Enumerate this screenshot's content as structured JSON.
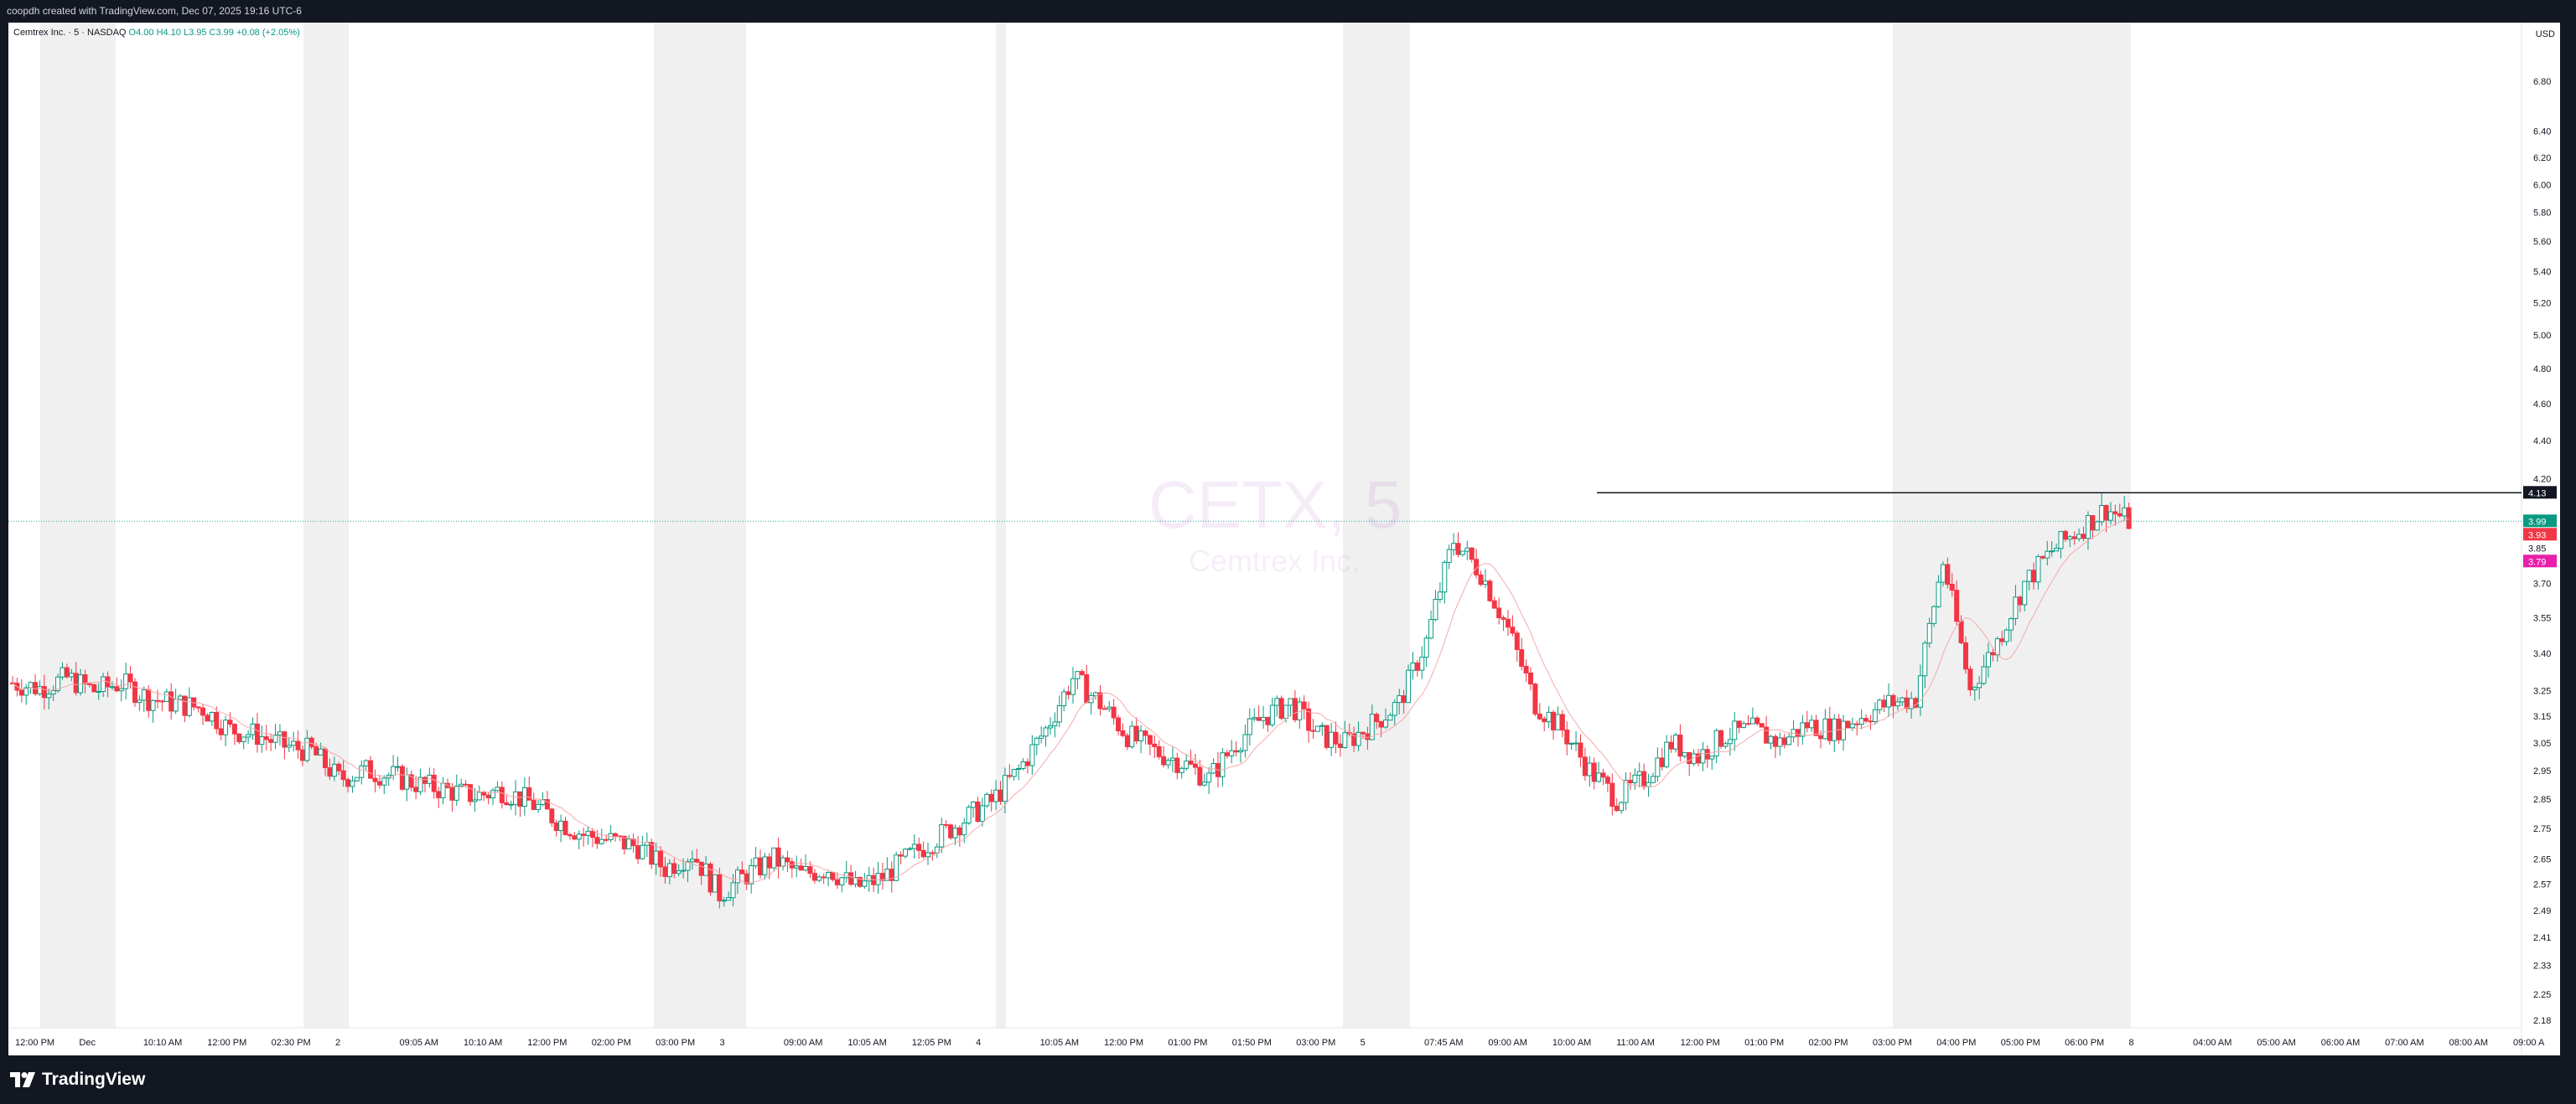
{
  "header": {
    "attribution": "coopdh created with TradingView.com, Dec 07, 2025 19:16 UTC-6"
  },
  "legend": {
    "symbol_line": "Cemtrex Inc. · 5 · NASDAQ",
    "ohlc": "O4.00  H4.10  L3.95  C3.99  +0.08 (+2.05%)"
  },
  "watermark": {
    "ticker": "CETX, 5",
    "name": "Cemtrex Inc."
  },
  "footer": {
    "brand": "TradingView"
  },
  "colors": {
    "up": "#089981",
    "down": "#f23645",
    "session_shade": "#f0f0f0",
    "ma": "#f7a9a9",
    "current_line": "#26a69a",
    "resistance": "#131722",
    "label_magenta": "#e91eaa"
  },
  "chart_data": {
    "type": "candlestick",
    "timeframe": "5",
    "currency": "USD",
    "y_scale": "log",
    "ylim": [
      2.16,
      7.3
    ],
    "y_ticks": [
      6.8,
      6.4,
      6.2,
      6.0,
      5.8,
      5.6,
      5.4,
      5.2,
      5.0,
      4.8,
      4.6,
      4.4,
      4.2,
      3.85,
      3.7,
      3.55,
      3.4,
      3.25,
      3.15,
      3.05,
      2.95,
      2.85,
      2.75,
      2.65,
      2.57,
      2.49,
      2.41,
      2.33,
      2.25,
      2.18
    ],
    "x_ticks": [
      "12:00 PM",
      "Dec",
      "10:10 AM",
      "12:00 PM",
      "02:30 PM",
      "2",
      "09:05 AM",
      "10:10 AM",
      "12:00 PM",
      "02:00 PM",
      "03:00 PM",
      "3",
      "09:00 AM",
      "10:05 AM",
      "12:05 PM",
      "4",
      "10:05 AM",
      "12:00 PM",
      "01:00 PM",
      "01:50 PM",
      "03:00 PM",
      "5",
      "07:45 AM",
      "09:00 AM",
      "10:00 AM",
      "11:00 AM",
      "12:00 PM",
      "01:00 PM",
      "02:00 PM",
      "03:00 PM",
      "04:00 PM",
      "05:00 PM",
      "06:00 PM",
      "8",
      "04:00 AM",
      "05:00 AM",
      "06:00 AM",
      "07:00 AM",
      "08:00 AM",
      "09:00 A"
    ],
    "price_path": [
      3.28,
      3.26,
      3.3,
      3.25,
      3.28,
      3.22,
      3.2,
      3.18,
      3.1,
      3.08,
      3.04,
      3.02,
      2.92,
      2.95,
      2.93,
      2.9,
      2.88,
      2.86,
      2.88,
      2.84,
      2.78,
      2.73,
      2.71,
      2.69,
      2.62,
      2.67,
      2.54,
      2.6,
      2.65,
      2.6,
      2.62,
      2.56,
      2.59,
      2.66,
      2.72,
      2.78,
      2.84,
      2.95,
      3.1,
      3.3,
      3.2,
      3.08,
      3.02,
      2.98,
      2.92,
      3.05,
      3.15,
      3.2,
      3.08,
      3.05,
      3.12,
      3.2,
      3.45,
      3.9,
      3.75,
      3.5,
      3.2,
      3.1,
      2.95,
      2.85,
      2.92,
      3.05,
      3.0,
      3.08,
      3.1,
      3.05,
      3.12,
      3.1,
      3.15,
      3.2,
      3.22,
      3.8,
      3.25,
      3.45,
      3.7,
      3.85,
      3.95,
      4.05,
      3.98
    ],
    "price_labels": [
      {
        "value": "4.13",
        "color": "#131722"
      },
      {
        "value": "3.99",
        "color": "#089981"
      },
      {
        "value": "3.93",
        "color": "#f23645"
      },
      {
        "value": "3.85",
        "color": "#ffffff"
      },
      {
        "value": "3.79",
        "color": "#e91eaa"
      }
    ],
    "resistance_level": 4.13,
    "last_price": 3.99
  }
}
